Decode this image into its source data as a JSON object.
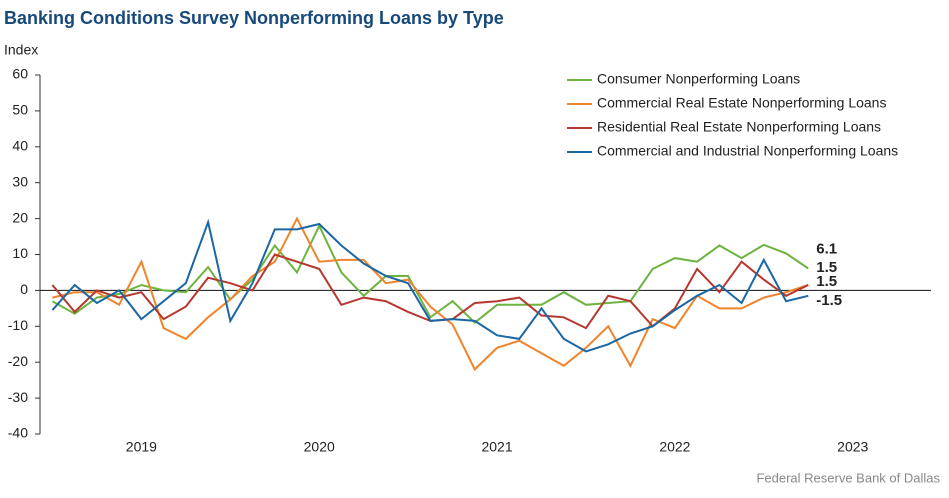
{
  "chart_data": {
    "type": "line",
    "title": "Banking Conditions Survey Nonperforming Loans by Type",
    "y_label": "Index",
    "source": "Federal Reserve Bank of Dallas",
    "x": [
      2019,
      2019.125,
      2019.25,
      2019.375,
      2019.5,
      2019.625,
      2019.75,
      2019.875,
      2020,
      2020.125,
      2020.25,
      2020.375,
      2020.5,
      2020.625,
      2020.75,
      2020.875,
      2021,
      2021.125,
      2021.25,
      2021.375,
      2021.5,
      2021.625,
      2021.75,
      2021.875,
      2022,
      2022.125,
      2022.25,
      2022.375,
      2022.5,
      2022.625,
      2022.75,
      2022.875,
      2023,
      2023.125,
      2023.25
    ],
    "xlim": [
      2018.93,
      2023.94
    ],
    "xticks": [
      {
        "value": 2019.5,
        "label": "2019"
      },
      {
        "value": 2020.5,
        "label": "2020"
      },
      {
        "value": 2021.5,
        "label": "2021"
      },
      {
        "value": 2022.5,
        "label": "2022"
      },
      {
        "value": 2023.5,
        "label": "2023"
      }
    ],
    "ylim": [
      -40,
      60
    ],
    "yticks": [
      -40,
      -30,
      -20,
      -10,
      0,
      10,
      20,
      30,
      40,
      50,
      60
    ],
    "grid": false,
    "legend": "top-right",
    "series": [
      {
        "name": "Consumer Nonperforming Loans",
        "color": "#6db33f",
        "values": [
          -3,
          -6.5,
          -2,
          -1,
          1.5,
          0,
          -0.5,
          6.5,
          -2.5,
          3,
          12.5,
          5,
          18,
          5,
          -1.5,
          4,
          4,
          -7.5,
          -3,
          -9,
          -4,
          -4,
          -4,
          -0.5,
          -4,
          -3.5,
          -3,
          6,
          9,
          8,
          12.5,
          9,
          12.7,
          10.3,
          6.1
        ],
        "end_label": "6.1"
      },
      {
        "name": "Commercial Real Estate Nonperforming Loans",
        "color": "#f0842c",
        "values": [
          -2,
          -0.5,
          -0.5,
          -4,
          8,
          -10.5,
          -13.5,
          -7.5,
          -2.5,
          4,
          8,
          20,
          8,
          8.5,
          8.5,
          2,
          3,
          -4.5,
          -9.5,
          -22,
          -16,
          -14,
          -17.5,
          -21,
          -16,
          -10,
          -21,
          -8,
          -10.5,
          -1.5,
          -5,
          -5,
          -2,
          -0.5,
          1.5
        ],
        "end_label": "1.5"
      },
      {
        "name": "Residential Real Estate Nonperforming Loans",
        "color": "#b5382f",
        "values": [
          1.5,
          -6,
          0,
          -2,
          -0.5,
          -8,
          -4.5,
          3.5,
          2,
          0,
          10,
          8,
          6,
          -4,
          -2,
          -3,
          -6,
          -8.5,
          -8,
          -3.5,
          -3,
          -2,
          -7,
          -7.5,
          -10.5,
          -1.5,
          -3,
          -10,
          -5,
          6,
          -0.5,
          8,
          3,
          -1.5,
          1.5
        ],
        "end_label": "1.5"
      },
      {
        "name": "Commercial and Industrial Nonperforming Loans",
        "color": "#1b67a3",
        "values": [
          -5.5,
          1.5,
          -3.5,
          0,
          -8,
          -3,
          2,
          19,
          -8.5,
          2,
          17,
          17,
          18.5,
          12.5,
          7.5,
          4,
          2,
          -8.5,
          -8,
          -8.5,
          -12.5,
          -13.5,
          -5,
          -13.5,
          -17,
          -15,
          -12,
          -10,
          -5.5,
          -1.5,
          1.5,
          -3.5,
          8.5,
          -3,
          -1.5
        ],
        "end_label": "-1.5"
      }
    ]
  }
}
